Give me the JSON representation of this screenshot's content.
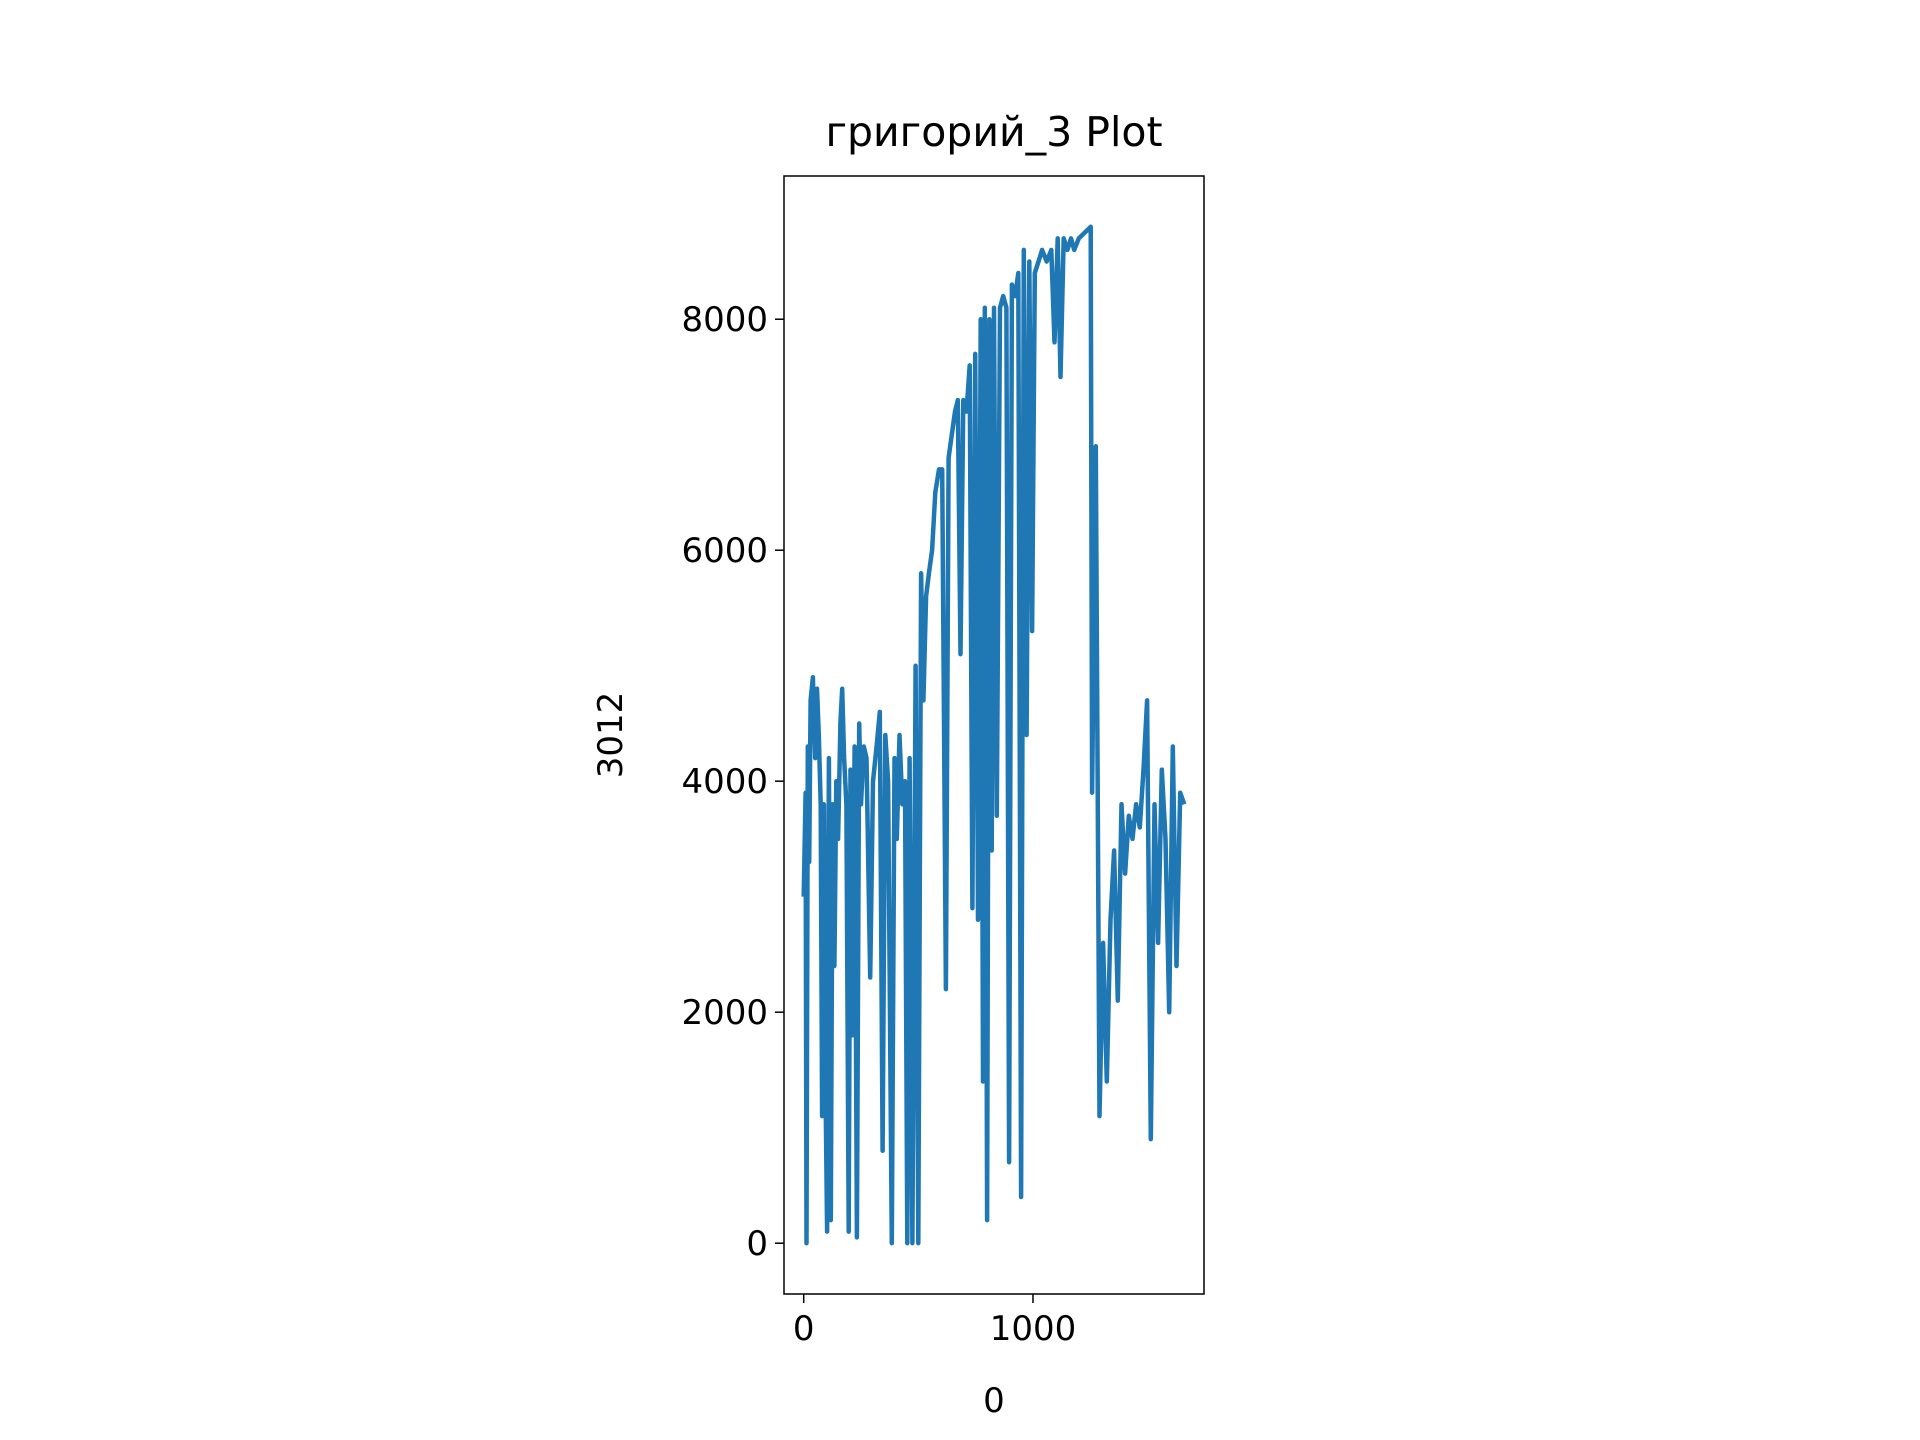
{
  "chart_data": {
    "type": "line",
    "title": "григорий_3 Plot",
    "x_label": "0",
    "y_label": "3012",
    "x": [
      0,
      8,
      12,
      18,
      24,
      30,
      40,
      50,
      58,
      66,
      74,
      80,
      88,
      96,
      102,
      110,
      118,
      126,
      134,
      142,
      150,
      160,
      168,
      176,
      186,
      196,
      204,
      212,
      222,
      232,
      242,
      250,
      262,
      274,
      290,
      302,
      318,
      332,
      344,
      356,
      368,
      384,
      396,
      406,
      418,
      430,
      442,
      452,
      462,
      474,
      488,
      500,
      512,
      522,
      534,
      546,
      560,
      574,
      590,
      604,
      620,
      632,
      646,
      660,
      672,
      684,
      696,
      710,
      724,
      736,
      748,
      760,
      772,
      782,
      790,
      800,
      810,
      820,
      830,
      842,
      856,
      870,
      884,
      896,
      908,
      922,
      936,
      948,
      960,
      972,
      984,
      996,
      1008,
      1024,
      1040,
      1060,
      1080,
      1094,
      1108,
      1120,
      1134,
      1150,
      1166,
      1180,
      1200,
      1252,
      1258,
      1274,
      1290,
      1306,
      1322,
      1338,
      1354,
      1370,
      1386,
      1402,
      1418,
      1434,
      1450,
      1466,
      1482,
      1498,
      1514,
      1530,
      1546,
      1562,
      1578,
      1594,
      1610,
      1626,
      1642,
      1660
    ],
    "series": [
      {
        "name": "3012",
        "color": "#1f77b4",
        "values": [
          3000,
          3900,
          0,
          4300,
          3300,
          4700,
          4900,
          4200,
          4800,
          4400,
          3800,
          1100,
          3800,
          1200,
          100,
          4200,
          200,
          3800,
          2400,
          4000,
          3500,
          4500,
          4800,
          4200,
          3800,
          100,
          4100,
          1800,
          4300,
          50,
          4500,
          3800,
          4300,
          4200,
          2300,
          4000,
          4300,
          4600,
          800,
          4400,
          4000,
          0,
          4200,
          3500,
          4400,
          3800,
          4000,
          0,
          4200,
          0,
          5000,
          0,
          5800,
          4700,
          5600,
          5800,
          6000,
          6500,
          6700,
          6700,
          2200,
          6800,
          7000,
          7200,
          7300,
          5100,
          7300,
          7200,
          7600,
          2900,
          7700,
          2800,
          8000,
          1400,
          8100,
          200,
          8000,
          3400,
          8100,
          3700,
          8100,
          8200,
          8100,
          700,
          8300,
          8200,
          8400,
          400,
          8600,
          4400,
          8500,
          5300,
          8400,
          8500,
          8600,
          8500,
          8600,
          7800,
          8700,
          7500,
          8700,
          8600,
          8700,
          8600,
          8700,
          8800,
          3900,
          6900,
          1100,
          2600,
          1400,
          2800,
          3400,
          2100,
          3800,
          3200,
          3700,
          3500,
          3800,
          3600,
          4100,
          4700,
          900,
          3800,
          2600,
          4100,
          3500,
          2000,
          4300,
          2400,
          3900,
          3800
        ]
      }
    ],
    "xlim": [
      -86,
      1746
    ],
    "ylim": [
      -440,
      9240
    ],
    "xticks": [
      0,
      1000
    ],
    "yticks": [
      0,
      2000,
      4000,
      6000,
      8000
    ]
  }
}
